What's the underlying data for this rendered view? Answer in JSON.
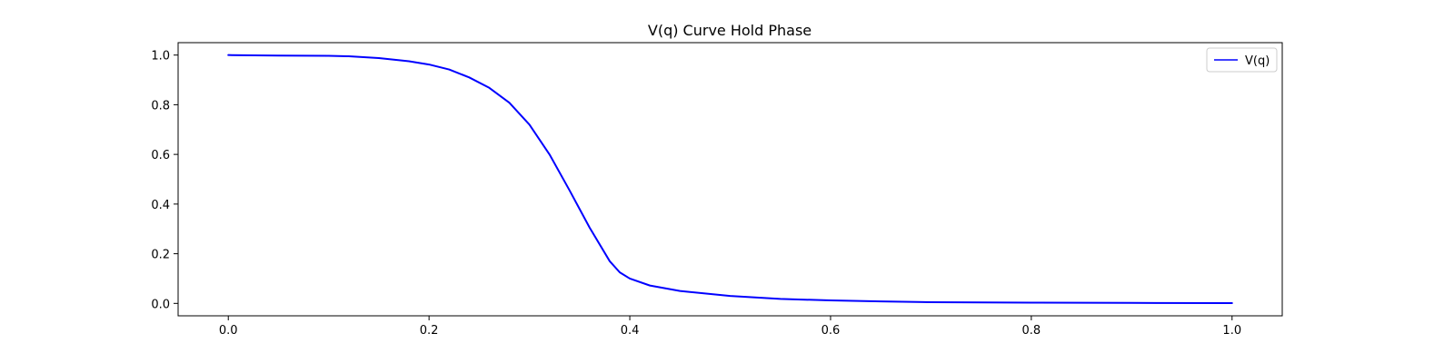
{
  "chart_data": {
    "type": "line",
    "title": "V(q) Curve Hold Phase",
    "xlabel": "",
    "ylabel": "",
    "xlim": [
      -0.05,
      1.05
    ],
    "ylim": [
      -0.05,
      1.05
    ],
    "xticks": [
      0.0,
      0.2,
      0.4,
      0.6,
      0.8,
      1.0
    ],
    "xtick_labels": [
      "0.0",
      "0.2",
      "0.4",
      "0.6",
      "0.8",
      "1.0"
    ],
    "yticks": [
      0.0,
      0.2,
      0.4,
      0.6,
      0.8,
      1.0
    ],
    "ytick_labels": [
      "0.0",
      "0.2",
      "0.4",
      "0.6",
      "0.8",
      "1.0"
    ],
    "grid": false,
    "legend_position": "top-right",
    "series": [
      {
        "name": "V(q)",
        "color": "#0000ff",
        "x": [
          0.0,
          0.05,
          0.1,
          0.12,
          0.15,
          0.18,
          0.2,
          0.22,
          0.24,
          0.26,
          0.28,
          0.3,
          0.32,
          0.34,
          0.36,
          0.38,
          0.39,
          0.4,
          0.42,
          0.45,
          0.5,
          0.55,
          0.6,
          0.65,
          0.7,
          0.8,
          0.9,
          1.0
        ],
        "y": [
          1.0,
          0.998,
          0.997,
          0.995,
          0.988,
          0.975,
          0.962,
          0.942,
          0.91,
          0.868,
          0.808,
          0.72,
          0.6,
          0.455,
          0.305,
          0.17,
          0.125,
          0.1,
          0.072,
          0.05,
          0.03,
          0.018,
          0.012,
          0.008,
          0.005,
          0.003,
          0.002,
          0.001
        ]
      }
    ]
  }
}
